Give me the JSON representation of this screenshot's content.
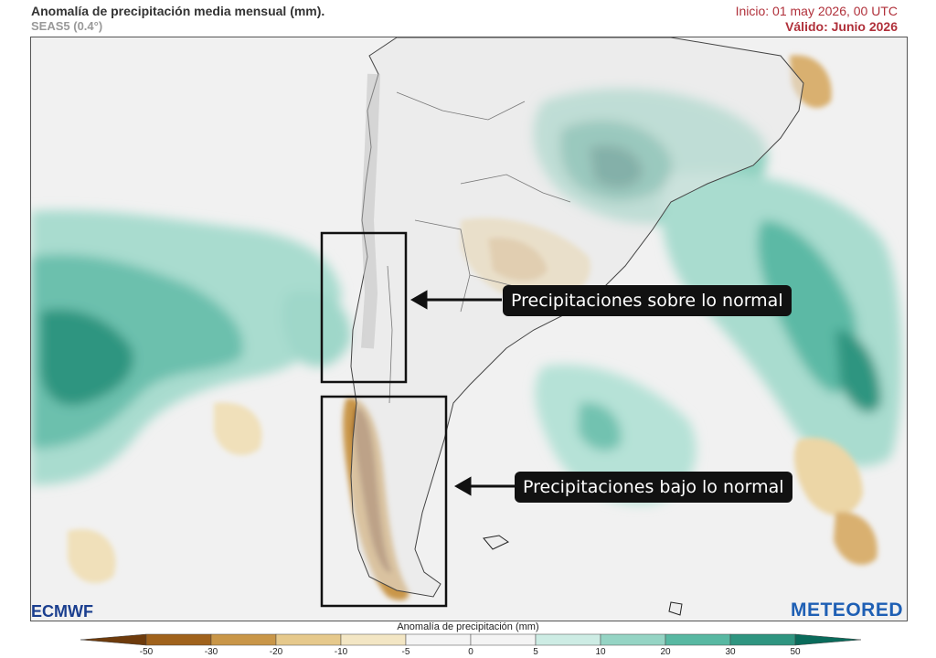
{
  "header": {
    "title": "Anomalía de precipitación media mensual (mm).",
    "subtitle": "SEAS5 (0.4°)",
    "init": "Inicio: 01 may 2026, 00 UTC",
    "valid": "Válido: Junio 2026"
  },
  "annotations": {
    "above": "Precipitaciones sobre lo normal",
    "below": "Precipitaciones bajo lo normal"
  },
  "logos": {
    "left": "ECMWF",
    "right": "METEORED"
  },
  "colorbar": {
    "title": "Anomalía de precipitación (mm)",
    "ticks": [
      "-50",
      "-30",
      "-20",
      "-10",
      "-5",
      "0",
      "5",
      "10",
      "20",
      "30",
      "50"
    ],
    "colors": [
      "#6e3b0c",
      "#a0621c",
      "#c99648",
      "#e6c98c",
      "#f3e6c4",
      "#f4f4f4",
      "#f4f4f4",
      "#cdece4",
      "#95d4c4",
      "#58b8a2",
      "#2f9580",
      "#0a6b5b"
    ]
  }
}
